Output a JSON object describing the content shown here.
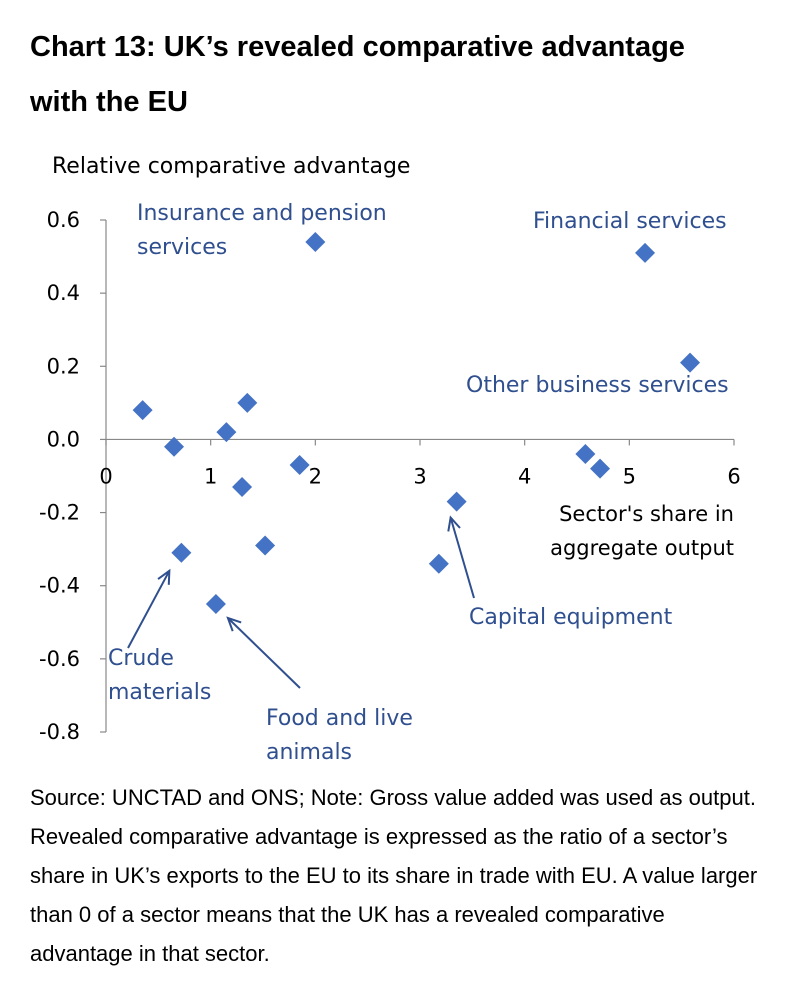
{
  "title_lines": [
    "Chart 13:  UK’s revealed comparative advantage",
    "with the EU"
  ],
  "colors": {
    "marker": "#4472c4",
    "annotation": "#2f4f8f",
    "axis": "#888888"
  },
  "chart_data": {
    "type": "scatter",
    "ylabel": "Relative comparative advantage",
    "xlabel_lines": [
      "Sector's share in",
      "aggregate output"
    ],
    "xlim": [
      0,
      6
    ],
    "ylim": [
      -0.8,
      0.6
    ],
    "x_ticks": [
      "0",
      "1",
      "2",
      "3",
      "4",
      "5",
      "6"
    ],
    "y_ticks": [
      "0.6",
      "0.4",
      "0.2",
      "0.0",
      "-0.2",
      "-0.4",
      "-0.6",
      "-0.8"
    ],
    "points": [
      {
        "x": 0.35,
        "y": 0.08
      },
      {
        "x": 0.65,
        "y": -0.02
      },
      {
        "x": 0.72,
        "y": -0.31
      },
      {
        "x": 1.05,
        "y": -0.45
      },
      {
        "x": 1.15,
        "y": 0.02
      },
      {
        "x": 1.3,
        "y": -0.13
      },
      {
        "x": 1.35,
        "y": 0.1
      },
      {
        "x": 1.52,
        "y": -0.29
      },
      {
        "x": 1.85,
        "y": -0.07
      },
      {
        "x": 2.0,
        "y": 0.54
      },
      {
        "x": 3.18,
        "y": -0.34
      },
      {
        "x": 3.35,
        "y": -0.17
      },
      {
        "x": 4.58,
        "y": -0.04
      },
      {
        "x": 4.72,
        "y": -0.08
      },
      {
        "x": 5.15,
        "y": 0.51
      },
      {
        "x": 5.58,
        "y": 0.21
      }
    ],
    "annotations": [
      {
        "lines": [
          "Insurance and pension",
          "services"
        ]
      },
      {
        "lines": [
          "Financial services"
        ]
      },
      {
        "lines": [
          "Other business services"
        ]
      },
      {
        "lines": [
          "Capital equipment"
        ]
      },
      {
        "lines": [
          "Crude",
          "materials"
        ]
      },
      {
        "lines": [
          "Food and live",
          "animals"
        ]
      }
    ]
  },
  "note_text": "Source:  UNCTAD and ONS; Note: Gross value added was used as output. Revealed comparative advantage is expressed as the ratio of a sector’s share in UK’s exports to the EU to its share in trade with EU. A value larger than 0 of a sector means that the UK has a revealed comparative advantage in that sector."
}
